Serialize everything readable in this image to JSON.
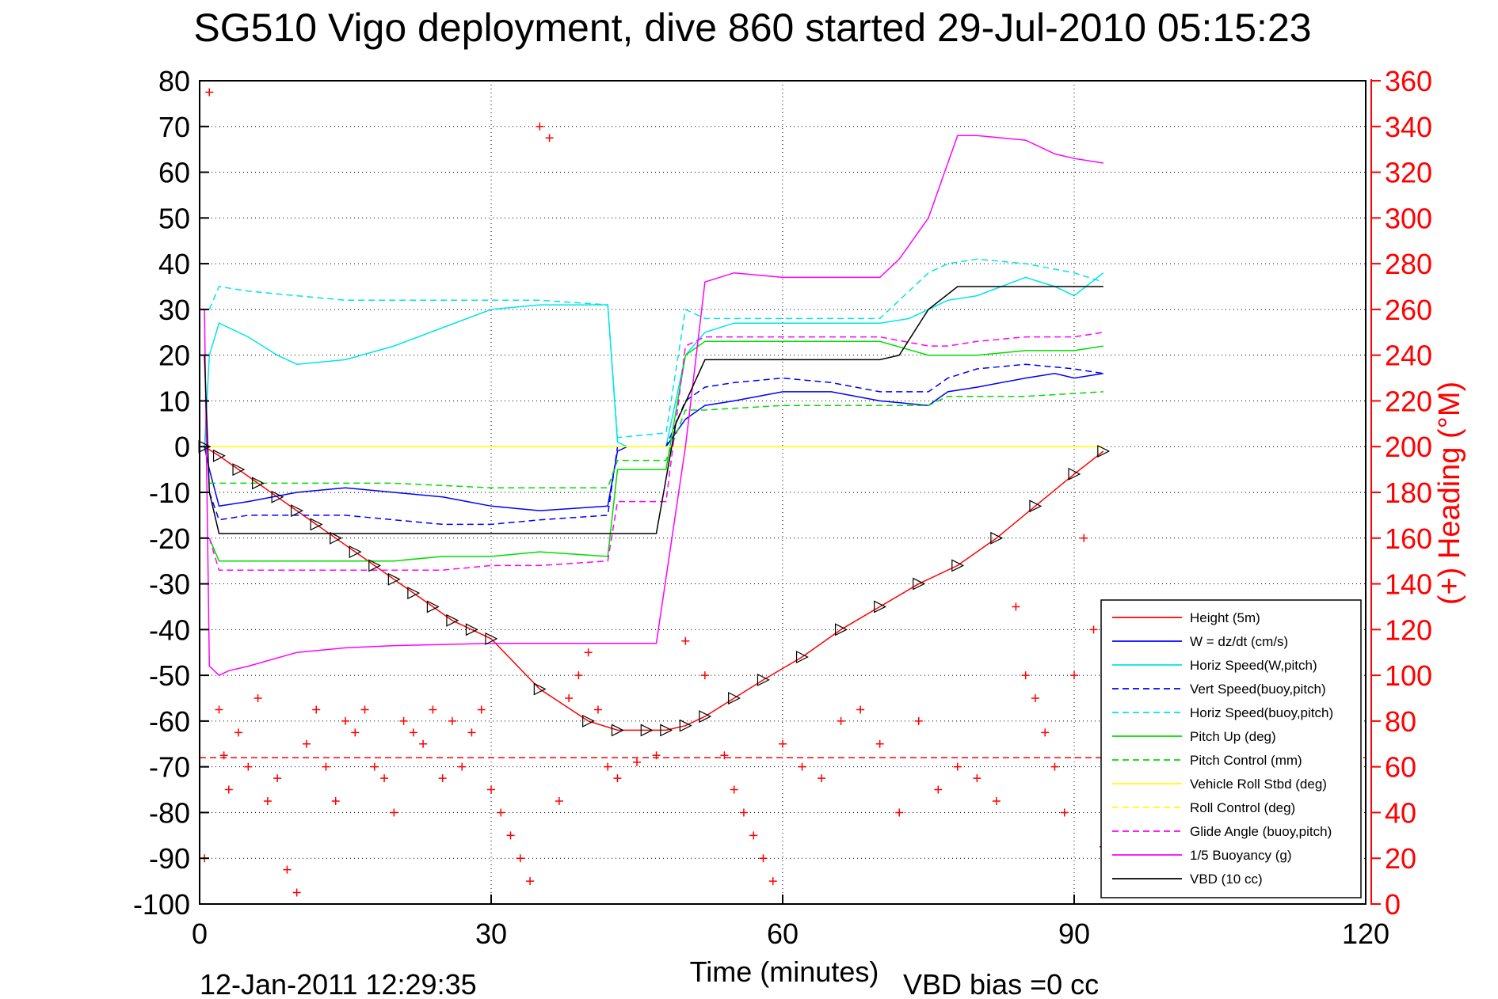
{
  "chart_data": {
    "type": "line",
    "title": "SG510 Vigo deployment, dive 860 started 29-Jul-2010 05:15:23",
    "xlabel": "Time (minutes)",
    "ylabel": "",
    "y2label": "(+) Heading (°M)",
    "footer_left": "12-Jan-2011 12:29:35",
    "footer_right": "VBD bias =0 cc",
    "xlim": [
      0,
      120
    ],
    "ylim": [
      -100,
      80
    ],
    "y2lim": [
      0,
      360
    ],
    "xticks": [
      "0",
      "30",
      "60",
      "90",
      "120"
    ],
    "yticks": [
      "80",
      "70",
      "60",
      "50",
      "40",
      "30",
      "20",
      "10",
      "0",
      "-10",
      "-20",
      "-30",
      "-40",
      "-50",
      "-60",
      "-70",
      "-80",
      "-90",
      "-100"
    ],
    "y2ticks": [
      "360",
      "340",
      "320",
      "300",
      "280",
      "260",
      "240",
      "220",
      "200",
      "180",
      "160",
      "140",
      "120",
      "100",
      "80",
      "60",
      "40",
      "20",
      "0"
    ],
    "grid": true,
    "legend_position": "bottom-right",
    "legend": [
      {
        "label": "Height (5m)",
        "color": "#ff0000",
        "dash": "solid"
      },
      {
        "label": "W = dz/dt (cm/s)",
        "color": "#0000ff",
        "dash": "solid"
      },
      {
        "label": "Horiz Speed(W,pitch)",
        "color": "#00e5e5",
        "dash": "solid"
      },
      {
        "label": "Vert Speed(buoy,pitch)",
        "color": "#0000ff",
        "dash": "dashed"
      },
      {
        "label": "Horiz Speed(buoy,pitch)",
        "color": "#00e5e5",
        "dash": "dashed"
      },
      {
        "label": "Pitch Up (deg)",
        "color": "#00dd00",
        "dash": "solid"
      },
      {
        "label": "Pitch Control (mm)",
        "color": "#00dd00",
        "dash": "dashed"
      },
      {
        "label": "Vehicle Roll Stbd (deg)",
        "color": "#ffff00",
        "dash": "solid"
      },
      {
        "label": "Roll Control (deg)",
        "color": "#ffff00",
        "dash": "dashed"
      },
      {
        "label": "Glide Angle (buoy,pitch)",
        "color": "#ff00ff",
        "dash": "dashed"
      },
      {
        "label": "1/5 Buoyancy (g)",
        "color": "#ff00ff",
        "dash": "solid"
      },
      {
        "label": "VBD (10 cc)",
        "color": "#000000",
        "dash": "solid"
      }
    ],
    "series": [
      {
        "name": "Height (5m)",
        "x": [
          0.5,
          2,
          4,
          6,
          8,
          10,
          12,
          14,
          16,
          18,
          20,
          22,
          24,
          26,
          28,
          30,
          35,
          40,
          43,
          46,
          48,
          50,
          52,
          55,
          58,
          62,
          66,
          70,
          74,
          78,
          82,
          86,
          90,
          93
        ],
        "y": [
          0,
          -2,
          -5,
          -8,
          -11,
          -14,
          -17,
          -20,
          -23,
          -26,
          -29,
          -32,
          -35,
          -38,
          -40,
          -42,
          -53,
          -60,
          -62,
          -62,
          -62,
          -61,
          -59,
          -55,
          -51,
          -46,
          -40,
          -35,
          -30,
          -26,
          -20,
          -13,
          -6,
          -1
        ]
      },
      {
        "name": "W = dz/dt (cm/s)",
        "x": [
          0.5,
          1,
          2,
          5,
          10,
          15,
          20,
          25,
          30,
          35,
          42,
          43,
          44,
          47,
          48,
          50,
          52,
          55,
          60,
          65,
          70,
          75,
          77,
          80,
          85,
          88,
          90,
          93
        ],
        "y": [
          0,
          -5,
          -13,
          -12,
          -10,
          -9,
          -10,
          -11,
          -13,
          -14,
          -13,
          -1,
          0,
          0,
          0,
          6,
          9,
          10,
          12,
          12,
          10,
          9,
          12,
          13,
          15,
          16,
          15,
          16
        ]
      },
      {
        "name": "Horiz Speed(W,pitch)",
        "x": [
          0.5,
          1,
          2,
          5,
          8,
          10,
          15,
          20,
          25,
          30,
          35,
          40,
          42,
          43,
          44,
          47,
          48,
          50,
          52,
          55,
          60,
          65,
          70,
          73,
          75,
          77,
          80,
          85,
          88,
          90,
          93
        ],
        "y": [
          0,
          20,
          27,
          24,
          20,
          18,
          19,
          22,
          26,
          30,
          31,
          31,
          31,
          1,
          0,
          0,
          0,
          20,
          25,
          27,
          27,
          27,
          27,
          28,
          30,
          32,
          33,
          37,
          35,
          33,
          38
        ]
      },
      {
        "name": "Vert Speed(buoy,pitch)",
        "x": [
          1,
          2,
          5,
          10,
          15,
          20,
          25,
          30,
          35,
          42,
          43,
          48,
          50,
          52,
          55,
          60,
          65,
          70,
          75,
          77,
          80,
          85,
          90,
          93
        ],
        "y": [
          -10,
          -16,
          -15,
          -15,
          -15,
          -16,
          -17,
          -17,
          -16,
          -15,
          0,
          0,
          10,
          13,
          14,
          15,
          14,
          12,
          12,
          15,
          17,
          18,
          17,
          16
        ]
      },
      {
        "name": "Horiz Speed(buoy,pitch)",
        "x": [
          1,
          2,
          5,
          10,
          15,
          20,
          25,
          30,
          35,
          42,
          43,
          48,
          50,
          52,
          55,
          60,
          65,
          70,
          73,
          75,
          77,
          80,
          85,
          90,
          93
        ],
        "y": [
          30,
          35,
          34,
          33,
          32,
          32,
          32,
          32,
          32,
          31,
          2,
          3,
          30,
          28,
          28,
          28,
          28,
          28,
          34,
          38,
          40,
          41,
          40,
          38,
          36
        ]
      },
      {
        "name": "Pitch Up (deg)",
        "x": [
          1,
          2,
          5,
          10,
          15,
          20,
          25,
          30,
          35,
          42,
          43,
          48,
          50,
          52,
          55,
          60,
          65,
          70,
          75,
          77,
          80,
          85,
          90,
          93
        ],
        "y": [
          -20,
          -25,
          -25,
          -25,
          -25,
          -25,
          -24,
          -24,
          -23,
          -24,
          -5,
          -5,
          20,
          23,
          23,
          23,
          23,
          23,
          20,
          20,
          20,
          21,
          21,
          22
        ]
      },
      {
        "name": "Pitch Control (mm)",
        "x": [
          1,
          2,
          10,
          20,
          30,
          40,
          42,
          43,
          48,
          50,
          52,
          60,
          70,
          75,
          77,
          85,
          93
        ],
        "y": [
          -8,
          -8,
          -8,
          -8,
          -9,
          -9,
          -9,
          -3,
          -3,
          8,
          8,
          9,
          9,
          9,
          11,
          11,
          12
        ]
      },
      {
        "name": "Vehicle Roll Stbd (deg)",
        "x": [
          0.5,
          5,
          10,
          20,
          30,
          40,
          45,
          50,
          55,
          60,
          65,
          70,
          75,
          80,
          85,
          90,
          93
        ],
        "y": [
          0,
          0,
          0,
          0,
          0,
          0,
          0,
          0,
          0,
          0,
          0,
          0,
          0,
          0,
          0,
          0,
          0
        ]
      },
      {
        "name": "Roll Control (deg)",
        "x": [
          0.5,
          10,
          20,
          30,
          40,
          45,
          50,
          60,
          70,
          80,
          90,
          93
        ],
        "y": [
          0,
          0,
          0,
          0,
          0,
          0,
          0,
          0,
          0,
          0,
          0,
          0
        ]
      },
      {
        "name": "Glide Angle (buoy,pitch)",
        "x": [
          1,
          2,
          5,
          10,
          15,
          20,
          25,
          30,
          35,
          42,
          43,
          48,
          50,
          52,
          55,
          60,
          65,
          70,
          75,
          77,
          80,
          85,
          90,
          93
        ],
        "y": [
          -20,
          -27,
          -27,
          -27,
          -27,
          -27,
          -27,
          -26,
          -26,
          -25,
          -12,
          -12,
          22,
          24,
          24,
          24,
          24,
          24,
          22,
          22,
          23,
          24,
          24,
          25
        ]
      },
      {
        "name": "1/5 Buoyancy (g)",
        "x": [
          0.5,
          1,
          2,
          3,
          5,
          10,
          15,
          20,
          30,
          40,
          44,
          47,
          50,
          52,
          55,
          60,
          70,
          72,
          75,
          78,
          80,
          85,
          88,
          90,
          93
        ],
        "y": [
          30,
          -48,
          -50,
          -49,
          -48,
          -45,
          -44,
          -43.5,
          -43,
          -43,
          -43,
          -43,
          0,
          36,
          38,
          37,
          37,
          41,
          50,
          68,
          68,
          67,
          64,
          63,
          62
        ]
      },
      {
        "name": "VBD (10 cc)",
        "x": [
          0.5,
          1,
          2,
          10,
          20,
          30,
          40,
          45,
          47,
          49,
          52,
          55,
          60,
          65,
          70,
          72,
          75,
          78,
          80,
          85,
          90,
          93
        ],
        "y": [
          20,
          -10,
          -19,
          -19,
          -19,
          -19,
          -19,
          -19,
          -19,
          5,
          19,
          19,
          19,
          19,
          19,
          20,
          30,
          35,
          35,
          35,
          35,
          35
        ]
      }
    ],
    "heading_points": {
      "name": "Heading (°M)",
      "axis": "right",
      "x": [
        0.5,
        1,
        2,
        2.5,
        3,
        4,
        5,
        6,
        7,
        8,
        9,
        10,
        11,
        12,
        13,
        14,
        15,
        16,
        17,
        18,
        19,
        20,
        21,
        22,
        23,
        24,
        25,
        26,
        27,
        28,
        29,
        30,
        31,
        32,
        33,
        34,
        35,
        36,
        37,
        38,
        39,
        40,
        41,
        42,
        43,
        45,
        47,
        50,
        52,
        54,
        55,
        56,
        57,
        58,
        59,
        60,
        62,
        64,
        66,
        68,
        70,
        72,
        74,
        76,
        78,
        80,
        82,
        84,
        85,
        86,
        87,
        88,
        89,
        90,
        91,
        92,
        93
      ],
      "y": [
        20,
        355,
        85,
        65,
        50,
        75,
        60,
        90,
        45,
        55,
        15,
        5,
        70,
        85,
        60,
        45,
        80,
        75,
        85,
        60,
        55,
        40,
        80,
        75,
        70,
        85,
        55,
        80,
        60,
        75,
        85,
        50,
        40,
        30,
        20,
        10,
        340,
        335,
        45,
        90,
        100,
        110,
        85,
        60,
        55,
        62,
        65,
        115,
        100,
        65,
        50,
        40,
        30,
        20,
        10,
        70,
        60,
        55,
        80,
        85,
        70,
        40,
        80,
        50,
        60,
        55,
        45,
        130,
        100,
        90,
        75,
        60,
        40,
        100,
        160,
        120,
        25
      ]
    }
  }
}
